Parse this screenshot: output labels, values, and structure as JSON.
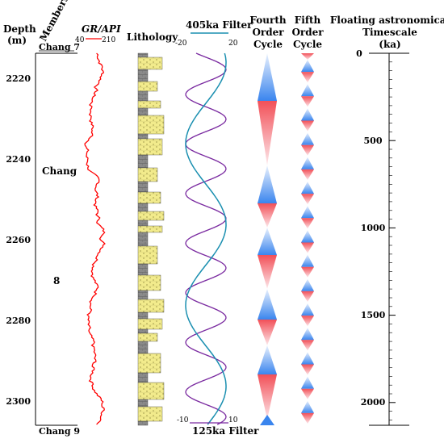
{
  "headers": {
    "depth": "Depth",
    "depth_unit": "(m)",
    "members": "Members",
    "gr_title": "GR/API",
    "gr_min": "40",
    "gr_max": "210",
    "lithology": "Lithology",
    "filter405_title": "405ka Filter",
    "filter405_min": "-20",
    "filter405_max": "20",
    "filter125_title": "125ka Filter",
    "filter125_min": "-10",
    "filter125_max": "10",
    "fourth_order_1": "Fourth",
    "fourth_order_2": "Order",
    "fourth_order_3": "Cycle",
    "fifth_order_1": "Fifth",
    "fifth_order_2": "Order",
    "fifth_order_3": "Cycle",
    "timescale_1": "Floating astronomical",
    "timescale_2": "Timescale",
    "timescale_3": "(ka)"
  },
  "members": {
    "top": "Chang 7",
    "middle_name": "Chang",
    "middle_number": "8",
    "bottom": "Chang 9"
  },
  "depth_ticks": [
    "2220",
    "2240",
    "2260",
    "2280",
    "2300"
  ],
  "timescale_ticks": [
    "0",
    "500",
    "1000",
    "1500",
    "2000"
  ],
  "colors": {
    "gr_curve": "#ff0000",
    "filter405_curve": "#1a8fb0",
    "filter125_curve": "#7a2aa0",
    "sandstone": "#f2eb8c",
    "mudstone": "#8a8a8a",
    "cycle_blue": "#3a85ee",
    "cycle_red": "#f25058"
  },
  "icons": {
    "sandstone_pattern": "dotted-sand-pattern",
    "mudstone_pattern": "brick-mud-pattern"
  }
}
